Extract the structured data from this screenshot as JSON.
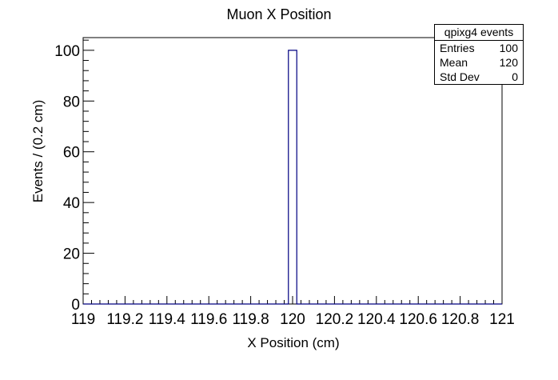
{
  "chart_data": {
    "type": "bar",
    "title": "Muon X Position",
    "xlabel": "X Position (cm)",
    "ylabel": "Events / (0.2 cm)",
    "xlim": [
      119,
      121
    ],
    "ylim": [
      0,
      105
    ],
    "x_ticks": [
      "119",
      "119.2",
      "119.4",
      "119.6",
      "119.8",
      "120",
      "120.2",
      "120.4",
      "120.6",
      "120.8",
      "121"
    ],
    "y_ticks": [
      "0",
      "20",
      "40",
      "60",
      "80",
      "100"
    ],
    "bins": [
      {
        "x_low": 119.98,
        "x_high": 120.02,
        "value": 100
      }
    ],
    "grid": false,
    "line_color": "#000080"
  },
  "stats": {
    "title": "qpixg4 events",
    "rows": [
      {
        "label": "Entries",
        "value": "100"
      },
      {
        "label": "Mean",
        "value": "120"
      },
      {
        "label": "Std Dev",
        "value": "0"
      }
    ]
  }
}
